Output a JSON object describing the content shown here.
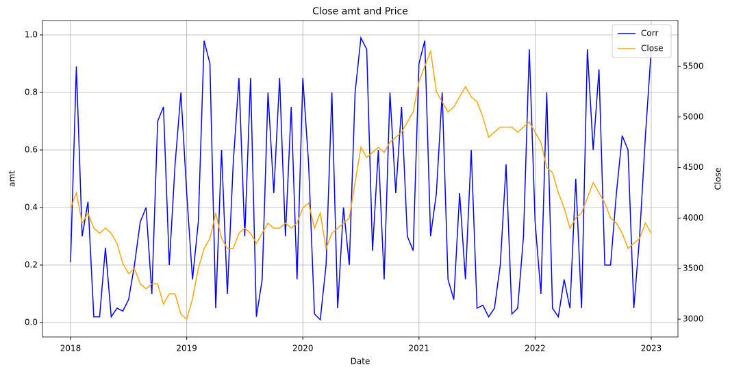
{
  "chart_data": {
    "type": "line",
    "title": "Close amt and Price",
    "xlabel": "Date",
    "ylabel": "amt",
    "y2label": "Close",
    "x": [
      2018.0,
      2018.05,
      2018.1,
      2018.15,
      2018.2,
      2018.25,
      2018.3,
      2018.35,
      2018.4,
      2018.45,
      2018.5,
      2018.55,
      2018.6,
      2018.65,
      2018.7,
      2018.75,
      2018.8,
      2018.85,
      2018.9,
      2018.95,
      2019.0,
      2019.05,
      2019.1,
      2019.15,
      2019.2,
      2019.25,
      2019.3,
      2019.35,
      2019.4,
      2019.45,
      2019.5,
      2019.55,
      2019.6,
      2019.65,
      2019.7,
      2019.75,
      2019.8,
      2019.85,
      2019.9,
      2019.95,
      2020.0,
      2020.05,
      2020.1,
      2020.15,
      2020.2,
      2020.25,
      2020.3,
      2020.35,
      2020.4,
      2020.45,
      2020.5,
      2020.55,
      2020.6,
      2020.65,
      2020.7,
      2020.75,
      2020.8,
      2020.85,
      2020.9,
      2020.95,
      2021.0,
      2021.05,
      2021.1,
      2021.15,
      2021.2,
      2021.25,
      2021.3,
      2021.35,
      2021.4,
      2021.45,
      2021.5,
      2021.55,
      2021.6,
      2021.65,
      2021.7,
      2021.75,
      2021.8,
      2021.85,
      2021.9,
      2021.95,
      2022.0,
      2022.05,
      2022.1,
      2022.15,
      2022.2,
      2022.25,
      2022.3,
      2022.35,
      2022.4,
      2022.45,
      2022.5,
      2022.55,
      2022.6,
      2022.65,
      2022.7,
      2022.75,
      2022.8,
      2022.85,
      2022.9,
      2022.95,
      2023.0
    ],
    "series": [
      {
        "name": "Corr",
        "color": "#0000ff",
        "axis": "y",
        "values": [
          0.21,
          0.89,
          0.3,
          0.42,
          0.02,
          0.02,
          0.26,
          0.02,
          0.05,
          0.04,
          0.08,
          0.2,
          0.35,
          0.4,
          0.1,
          0.7,
          0.75,
          0.2,
          0.55,
          0.8,
          0.45,
          0.15,
          0.35,
          0.98,
          0.9,
          0.05,
          0.6,
          0.1,
          0.55,
          0.85,
          0.3,
          0.85,
          0.02,
          0.15,
          0.8,
          0.45,
          0.85,
          0.3,
          0.75,
          0.15,
          0.85,
          0.55,
          0.03,
          0.01,
          0.2,
          0.8,
          0.05,
          0.4,
          0.2,
          0.8,
          0.99,
          0.95,
          0.25,
          0.6,
          0.15,
          0.8,
          0.45,
          0.75,
          0.3,
          0.25,
          0.9,
          0.98,
          0.3,
          0.45,
          0.8,
          0.15,
          0.08,
          0.45,
          0.15,
          0.6,
          0.05,
          0.06,
          0.02,
          0.05,
          0.2,
          0.55,
          0.03,
          0.05,
          0.3,
          0.95,
          0.35,
          0.1,
          0.8,
          0.05,
          0.02,
          0.15,
          0.05,
          0.5,
          0.05,
          0.95,
          0.6,
          0.88,
          0.2,
          0.2,
          0.45,
          0.65,
          0.6,
          0.05,
          0.3,
          0.65,
          0.95
        ]
      },
      {
        "name": "Close",
        "color": "#ffa500",
        "axis": "y2",
        "values": [
          4100,
          4250,
          3950,
          4050,
          3900,
          3850,
          3900,
          3850,
          3750,
          3550,
          3450,
          3500,
          3350,
          3300,
          3350,
          3350,
          3150,
          3250,
          3250,
          3050,
          3000,
          3200,
          3500,
          3700,
          3800,
          4050,
          3800,
          3700,
          3700,
          3850,
          3900,
          3850,
          3750,
          3850,
          3950,
          3900,
          3900,
          3950,
          3900,
          3950,
          4100,
          4150,
          3900,
          4050,
          3700,
          3850,
          3900,
          3950,
          4000,
          4350,
          4700,
          4600,
          4650,
          4700,
          4650,
          4750,
          4800,
          4850,
          4950,
          5050,
          5350,
          5500,
          5650,
          5250,
          5150,
          5050,
          5100,
          5200,
          5300,
          5200,
          5150,
          5000,
          4800,
          4850,
          4900,
          4900,
          4900,
          4850,
          4900,
          4950,
          4850,
          4750,
          4500,
          4450,
          4250,
          4100,
          3900,
          4000,
          4050,
          4200,
          4350,
          4250,
          4150,
          4000,
          3950,
          3850,
          3700,
          3750,
          3800,
          3950,
          3850
        ]
      }
    ],
    "xlim": [
      2017.758,
      2023.23
    ],
    "xticks": [
      2018,
      2019,
      2020,
      2021,
      2022,
      2023
    ],
    "ylim": [
      -0.05,
      1.05
    ],
    "yticks": [
      {
        "value": 0,
        "label": "0.0"
      },
      0.2,
      0.4,
      0.6,
      0.8,
      {
        "value": 1,
        "label": "1.0"
      }
    ],
    "y2lim": [
      2824,
      5954
    ],
    "y2ticks": [
      3000,
      3500,
      4000,
      4500,
      5000,
      5500
    ],
    "grid": true,
    "legend": "upper right"
  }
}
